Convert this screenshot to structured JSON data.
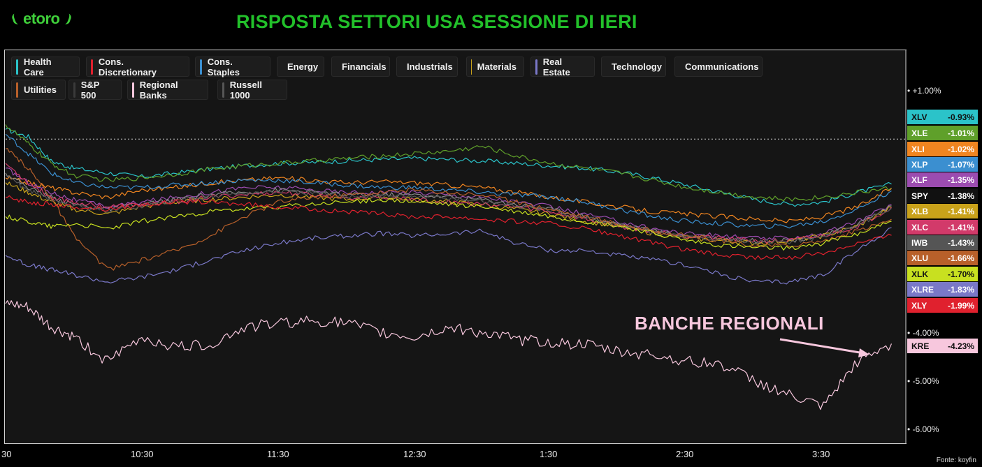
{
  "brand": {
    "logo_text": "etoro",
    "title": "RISPOSTA SETTORI USA SESSIONE DI IERI"
  },
  "chart_data": {
    "type": "line",
    "title": "RISPOSTA SETTORI USA SESSIONE DI IERI",
    "x_ticks": [
      "30",
      "10:30",
      "11:30",
      "12:30",
      "1:30",
      "2:30",
      "3:30"
    ],
    "x_range": [
      "9:30",
      "4:00"
    ],
    "y_ticks": [
      "+1.00%",
      "-4.00%",
      "-5.00%",
      "-6.00%"
    ],
    "ylim": [
      -6.25,
      1.85
    ],
    "reference_line": 0,
    "grid": false,
    "legend": [
      {
        "name": "Health Care",
        "color": "#2bc3c9"
      },
      {
        "name": "Cons. Discretionary",
        "color": "#e0212e"
      },
      {
        "name": "Cons. Staples",
        "color": "#3b8fd0"
      },
      {
        "name": "Energy",
        "color": "#5fa02a"
      },
      {
        "name": "Financials",
        "color": "#9c4cb0"
      },
      {
        "name": "Industrials",
        "color": "#f08520"
      },
      {
        "name": "Materials",
        "color": "#c9a21a"
      },
      {
        "name": "Real Estate",
        "color": "#7a78c8"
      },
      {
        "name": "Technology",
        "color": "#c8e020"
      },
      {
        "name": "Communications",
        "color": "#d23a6a"
      },
      {
        "name": "Utilities",
        "color": "#b8602a"
      },
      {
        "name": "S&P 500",
        "color": "#1d1d1d"
      },
      {
        "name": "Regional Banks",
        "color": "#f7c7dd"
      },
      {
        "name": "Russell 1000",
        "color": "#555555"
      }
    ],
    "series": [
      {
        "ticker": "XLV",
        "value": "-0.93%",
        "last": -0.93,
        "color": "#2bc3c9",
        "text": "#111",
        "x": [
          0,
          10,
          20,
          30,
          45,
          60,
          75,
          90,
          105,
          120,
          135,
          150,
          165,
          180,
          195,
          210,
          225,
          240,
          255,
          270,
          285,
          300,
          315,
          330,
          345,
          360,
          375,
          390
        ],
        "y": [
          0.2,
          0.05,
          -0.45,
          -0.6,
          -0.7,
          -0.78,
          -0.7,
          -0.62,
          -0.55,
          -0.5,
          -0.48,
          -0.45,
          -0.42,
          -0.4,
          -0.42,
          -0.45,
          -0.5,
          -0.55,
          -0.6,
          -0.68,
          -0.8,
          -0.95,
          -1.1,
          -1.25,
          -1.35,
          -1.3,
          -1.1,
          -0.93
        ]
      },
      {
        "ticker": "XLE",
        "value": "-1.01%",
        "last": -1.01,
        "color": "#5fa02a",
        "text": "#fff",
        "x": [
          0,
          10,
          20,
          30,
          45,
          60,
          75,
          90,
          105,
          120,
          135,
          150,
          165,
          180,
          195,
          210,
          225,
          240,
          255,
          270,
          285,
          300,
          315,
          330,
          345,
          360,
          375,
          390
        ],
        "y": [
          0.3,
          -0.1,
          -0.5,
          -0.75,
          -0.85,
          -0.8,
          -0.72,
          -0.62,
          -0.55,
          -0.5,
          -0.45,
          -0.4,
          -0.35,
          -0.3,
          -0.25,
          -0.15,
          -0.35,
          -0.5,
          -0.6,
          -0.7,
          -0.85,
          -1.0,
          -1.1,
          -1.2,
          -1.25,
          -1.2,
          -1.1,
          -1.01
        ]
      },
      {
        "ticker": "XLI",
        "value": "-1.02%",
        "last": -1.02,
        "color": "#f08520",
        "text": "#fff",
        "x": [
          0,
          10,
          20,
          30,
          45,
          60,
          75,
          90,
          105,
          120,
          135,
          150,
          165,
          180,
          195,
          210,
          225,
          240,
          255,
          270,
          285,
          300,
          315,
          330,
          345,
          360,
          375,
          390
        ],
        "y": [
          -0.8,
          -0.9,
          -1.0,
          -1.1,
          -1.2,
          -1.05,
          -1.0,
          -0.9,
          -0.85,
          -0.8,
          -0.85,
          -0.9,
          -0.88,
          -0.9,
          -0.95,
          -1.0,
          -1.1,
          -1.2,
          -1.3,
          -1.4,
          -1.5,
          -1.55,
          -1.6,
          -1.65,
          -1.7,
          -1.6,
          -1.4,
          -1.02
        ]
      },
      {
        "ticker": "XLP",
        "value": "-1.07%",
        "last": -1.07,
        "color": "#3b8fd0",
        "text": "#fff",
        "x": [
          0,
          10,
          20,
          30,
          45,
          60,
          75,
          90,
          105,
          120,
          135,
          150,
          165,
          180,
          195,
          210,
          225,
          240,
          255,
          270,
          285,
          300,
          315,
          330,
          345,
          360,
          375,
          390
        ],
        "y": [
          0.1,
          -0.3,
          -0.7,
          -0.9,
          -1.0,
          -1.0,
          -0.95,
          -0.9,
          -0.85,
          -0.85,
          -0.9,
          -0.95,
          -1.0,
          -1.0,
          -1.05,
          -1.1,
          -1.15,
          -1.2,
          -1.3,
          -1.45,
          -1.6,
          -1.7,
          -1.75,
          -1.8,
          -1.8,
          -1.7,
          -1.45,
          -1.07
        ]
      },
      {
        "ticker": "XLF",
        "value": "-1.35%",
        "last": -1.35,
        "color": "#9c4cb0",
        "text": "#fff",
        "x": [
          0,
          10,
          20,
          30,
          45,
          60,
          75,
          90,
          105,
          120,
          135,
          150,
          165,
          180,
          195,
          210,
          225,
          240,
          255,
          270,
          285,
          300,
          315,
          330,
          345,
          360,
          375,
          390
        ],
        "y": [
          -0.6,
          -0.9,
          -1.1,
          -1.25,
          -1.4,
          -1.3,
          -1.2,
          -1.1,
          -1.0,
          -1.0,
          -1.05,
          -1.1,
          -1.1,
          -1.1,
          -1.15,
          -1.2,
          -1.3,
          -1.4,
          -1.55,
          -1.7,
          -1.85,
          -1.95,
          -2.0,
          -2.05,
          -2.05,
          -1.95,
          -1.7,
          -1.35
        ]
      },
      {
        "ticker": "SPY",
        "value": "-1.38%",
        "last": -1.38,
        "color": "#1d1d1d",
        "text": "#fff",
        "line": "#888888",
        "x": [
          0,
          10,
          20,
          30,
          45,
          60,
          75,
          90,
          105,
          120,
          135,
          150,
          165,
          180,
          195,
          210,
          225,
          240,
          255,
          270,
          285,
          300,
          315,
          330,
          345,
          360,
          375,
          390
        ],
        "y": [
          -0.7,
          -1.0,
          -1.2,
          -1.35,
          -1.45,
          -1.35,
          -1.25,
          -1.15,
          -1.1,
          -1.05,
          -1.1,
          -1.15,
          -1.15,
          -1.15,
          -1.2,
          -1.25,
          -1.35,
          -1.45,
          -1.6,
          -1.75,
          -1.9,
          -2.0,
          -2.05,
          -2.1,
          -2.1,
          -2.0,
          -1.75,
          -1.38
        ]
      },
      {
        "ticker": "XLB",
        "value": "-1.41%",
        "last": -1.41,
        "color": "#c9a21a",
        "text": "#fff",
        "x": [
          0,
          10,
          20,
          30,
          45,
          60,
          75,
          90,
          105,
          120,
          135,
          150,
          165,
          180,
          195,
          210,
          225,
          240,
          255,
          270,
          285,
          300,
          315,
          330,
          345,
          360,
          375,
          390
        ],
        "y": [
          -0.9,
          -1.1,
          -1.3,
          -1.45,
          -1.55,
          -1.4,
          -1.3,
          -1.25,
          -1.2,
          -1.15,
          -1.2,
          -1.25,
          -1.2,
          -1.25,
          -1.3,
          -1.35,
          -1.45,
          -1.55,
          -1.7,
          -1.8,
          -1.95,
          -2.05,
          -2.1,
          -2.15,
          -2.1,
          -2.0,
          -1.8,
          -1.41
        ]
      },
      {
        "ticker": "XLC",
        "value": "-1.41%",
        "last": -1.41,
        "color": "#d23a6a",
        "text": "#fff",
        "x": [
          0,
          10,
          20,
          30,
          45,
          60,
          75,
          90,
          105,
          120,
          135,
          150,
          165,
          180,
          195,
          210,
          225,
          240,
          255,
          270,
          285,
          300,
          315,
          330,
          345,
          360,
          375,
          390
        ],
        "y": [
          -0.5,
          -0.9,
          -1.2,
          -1.3,
          -1.4,
          -1.35,
          -1.3,
          -1.2,
          -1.15,
          -1.1,
          -1.15,
          -1.2,
          -1.2,
          -1.25,
          -1.3,
          -1.35,
          -1.4,
          -1.5,
          -1.65,
          -1.8,
          -1.9,
          -2.0,
          -2.05,
          -2.1,
          -2.1,
          -2.0,
          -1.8,
          -1.41
        ]
      },
      {
        "ticker": "IWB",
        "value": "-1.43%",
        "last": -1.43,
        "color": "#555555",
        "text": "#fff",
        "x": [
          0,
          10,
          20,
          30,
          45,
          60,
          75,
          90,
          105,
          120,
          135,
          150,
          165,
          180,
          195,
          210,
          225,
          240,
          255,
          270,
          285,
          300,
          315,
          330,
          345,
          360,
          375,
          390
        ],
        "y": [
          -0.75,
          -1.05,
          -1.25,
          -1.38,
          -1.48,
          -1.38,
          -1.28,
          -1.18,
          -1.12,
          -1.08,
          -1.12,
          -1.18,
          -1.18,
          -1.18,
          -1.22,
          -1.28,
          -1.38,
          -1.48,
          -1.62,
          -1.78,
          -1.92,
          -2.02,
          -2.08,
          -2.12,
          -2.12,
          -2.02,
          -1.78,
          -1.43
        ]
      },
      {
        "ticker": "XLU",
        "value": "-1.66%",
        "last": -1.66,
        "color": "#b8602a",
        "text": "#fff",
        "x": [
          0,
          10,
          20,
          30,
          45,
          60,
          75,
          90,
          105,
          120,
          135,
          150,
          165,
          180,
          195,
          210,
          225,
          240,
          255,
          270,
          285,
          300,
          315,
          330,
          345,
          360,
          375,
          390
        ],
        "y": [
          -0.2,
          -0.6,
          -1.2,
          -2.0,
          -2.7,
          -2.5,
          -2.3,
          -2.0,
          -1.6,
          -1.3,
          -1.2,
          -1.15,
          -1.1,
          -1.05,
          -1.1,
          -1.15,
          -1.3,
          -1.45,
          -1.6,
          -1.75,
          -1.9,
          -2.0,
          -2.1,
          -2.2,
          -2.2,
          -2.1,
          -1.9,
          -1.66
        ]
      },
      {
        "ticker": "XLK",
        "value": "-1.70%",
        "last": -1.7,
        "color": "#c8e020",
        "text": "#111",
        "x": [
          0,
          10,
          20,
          30,
          45,
          60,
          75,
          90,
          105,
          120,
          135,
          150,
          165,
          180,
          195,
          210,
          225,
          240,
          255,
          270,
          285,
          300,
          315,
          330,
          345,
          360,
          375,
          390
        ],
        "y": [
          -1.6,
          -1.7,
          -1.8,
          -1.75,
          -1.85,
          -1.7,
          -1.6,
          -1.5,
          -1.45,
          -1.4,
          -1.35,
          -1.3,
          -1.25,
          -1.3,
          -1.35,
          -1.4,
          -1.5,
          -1.6,
          -1.7,
          -1.8,
          -1.95,
          -2.1,
          -2.2,
          -2.25,
          -2.25,
          -2.15,
          -1.95,
          -1.7
        ]
      },
      {
        "ticker": "XLRE",
        "value": "-1.83%",
        "last": -1.83,
        "color": "#7a78c8",
        "text": "#fff",
        "x": [
          0,
          10,
          20,
          30,
          45,
          60,
          75,
          90,
          105,
          120,
          135,
          150,
          165,
          180,
          195,
          210,
          225,
          240,
          255,
          270,
          285,
          300,
          315,
          330,
          345,
          360,
          375,
          390
        ],
        "y": [
          -2.4,
          -2.6,
          -2.7,
          -2.8,
          -2.95,
          -2.85,
          -2.7,
          -2.5,
          -2.3,
          -2.15,
          -2.05,
          -2.0,
          -1.95,
          -2.0,
          -1.95,
          -1.9,
          -2.15,
          -2.3,
          -2.3,
          -2.4,
          -2.5,
          -2.6,
          -2.8,
          -2.95,
          -2.95,
          -2.8,
          -2.3,
          -1.83
        ]
      },
      {
        "ticker": "XLY",
        "value": "-1.99%",
        "last": -1.99,
        "color": "#e0212e",
        "text": "#fff",
        "x": [
          0,
          10,
          20,
          30,
          45,
          60,
          75,
          90,
          105,
          120,
          135,
          150,
          165,
          180,
          195,
          210,
          225,
          240,
          255,
          270,
          285,
          300,
          315,
          330,
          345,
          360,
          375,
          390
        ],
        "y": [
          -1.2,
          -1.3,
          -1.35,
          -1.4,
          -1.45,
          -1.35,
          -1.3,
          -1.3,
          -1.35,
          -1.4,
          -1.45,
          -1.5,
          -1.55,
          -1.6,
          -1.6,
          -1.65,
          -1.7,
          -1.75,
          -1.85,
          -2.0,
          -2.15,
          -2.3,
          -2.4,
          -2.45,
          -2.45,
          -2.35,
          -2.15,
          -1.99
        ]
      },
      {
        "ticker": "KRE",
        "value": "-4.23%",
        "last": -4.23,
        "color": "#f7c7dd",
        "text": "#111",
        "x": [
          0,
          10,
          20,
          30,
          45,
          60,
          75,
          90,
          105,
          120,
          135,
          150,
          165,
          180,
          195,
          210,
          225,
          240,
          255,
          270,
          285,
          300,
          315,
          330,
          345,
          360,
          375,
          390
        ],
        "y": [
          -3.4,
          -3.5,
          -3.9,
          -4.1,
          -4.6,
          -4.1,
          -4.3,
          -4.25,
          -3.9,
          -3.8,
          -3.75,
          -3.8,
          -4.0,
          -4.1,
          -3.9,
          -4.0,
          -4.15,
          -4.2,
          -4.25,
          -4.4,
          -4.45,
          -4.6,
          -4.65,
          -5.0,
          -5.3,
          -5.55,
          -4.6,
          -4.23
        ]
      }
    ]
  },
  "annotation": "BANCHE REGIONALI",
  "source": "Fonte: koyfin"
}
